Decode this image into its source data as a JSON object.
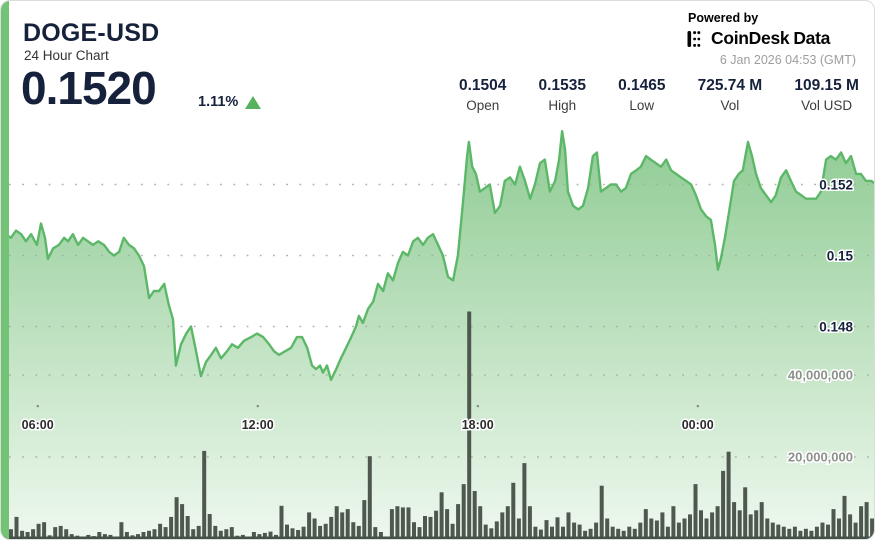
{
  "header": {
    "symbol": "DOGE-USD",
    "subtitle": "24 Hour Chart",
    "price": "0.1520",
    "change_percent": "1.11%",
    "change_direction": "up"
  },
  "branding": {
    "powered_by": "Powered by",
    "provider_name": "CoinDesk",
    "provider_suffix": "Data",
    "timestamp": "6 Jan 2026 04:53 (GMT)"
  },
  "stats": [
    {
      "value": "0.1504",
      "label": "Open"
    },
    {
      "value": "0.1535",
      "label": "High"
    },
    {
      "value": "0.1465",
      "label": "Low"
    },
    {
      "value": "725.74 M",
      "label": "Vol"
    },
    {
      "value": "109.15 M",
      "label": "Vol USD"
    }
  ],
  "colors": {
    "accent": "#72c376",
    "line": "#5cb868",
    "area_top": "#8fcb93",
    "area_bottom": "#eef8ee",
    "bar": "#4e584f",
    "baseline": "#47514a",
    "grid": "#9fab9f",
    "price_label": "#16213c",
    "volume_label": "#8d918b",
    "time_label": "#2b2b2b",
    "up": "#57b25e"
  },
  "chart_data": {
    "type": "area",
    "title": "DOGE-USD 24 Hour Chart",
    "x_axis": {
      "unit": "hour-of-day (t>24 = next day)",
      "range": [
        5.0,
        28.87
      ],
      "ticks": [
        {
          "label": "06:00",
          "t": 6
        },
        {
          "label": "12:00",
          "t": 12
        },
        {
          "label": "18:00",
          "t": 18
        },
        {
          "label": "00:00",
          "t": 24
        }
      ]
    },
    "price_axis": {
      "ticks": [
        {
          "label": "0.152",
          "value": 0.152
        },
        {
          "label": "0.15",
          "value": 0.15
        },
        {
          "label": "0.148",
          "value": 0.148
        }
      ],
      "visible_range": [
        0.1465,
        0.1535
      ]
    },
    "volume_axis": {
      "unit": "millions",
      "ticks": [
        {
          "label": "40,000,000",
          "value": 40
        },
        {
          "label": "20,000,000",
          "value": 20
        }
      ]
    },
    "price_series": [
      [
        5.0,
        0.1508
      ],
      [
        5.14,
        0.1506
      ],
      [
        5.27,
        0.1505
      ],
      [
        5.41,
        0.1507
      ],
      [
        5.55,
        0.1506
      ],
      [
        5.68,
        0.1504
      ],
      [
        5.82,
        0.1506
      ],
      [
        5.98,
        0.1503
      ],
      [
        6.09,
        0.1509
      ],
      [
        6.2,
        0.1505
      ],
      [
        6.28,
        0.1499
      ],
      [
        6.42,
        0.1502
      ],
      [
        6.58,
        0.1503
      ],
      [
        6.72,
        0.1505
      ],
      [
        6.83,
        0.1504
      ],
      [
        6.96,
        0.1506
      ],
      [
        7.1,
        0.1503
      ],
      [
        7.24,
        0.1505
      ],
      [
        7.37,
        0.1504
      ],
      [
        7.51,
        0.1503
      ],
      [
        7.65,
        0.1504
      ],
      [
        7.81,
        0.1503
      ],
      [
        7.95,
        0.1501
      ],
      [
        8.08,
        0.15
      ],
      [
        8.22,
        0.1501
      ],
      [
        8.35,
        0.1505
      ],
      [
        8.49,
        0.1503
      ],
      [
        8.63,
        0.1502
      ],
      [
        8.76,
        0.15
      ],
      [
        8.9,
        0.1497
      ],
      [
        9.04,
        0.1488
      ],
      [
        9.17,
        0.149
      ],
      [
        9.31,
        0.149
      ],
      [
        9.45,
        0.1492
      ],
      [
        9.58,
        0.1486
      ],
      [
        9.69,
        0.1482
      ],
      [
        9.77,
        0.1469
      ],
      [
        9.91,
        0.1475
      ],
      [
        10.05,
        0.1478
      ],
      [
        10.18,
        0.148
      ],
      [
        10.32,
        0.1473
      ],
      [
        10.45,
        0.1466
      ],
      [
        10.59,
        0.147
      ],
      [
        10.73,
        0.1472
      ],
      [
        10.86,
        0.1474
      ],
      [
        11.0,
        0.1471
      ],
      [
        11.16,
        0.1473
      ],
      [
        11.3,
        0.1475
      ],
      [
        11.46,
        0.1474
      ],
      [
        11.63,
        0.1476
      ],
      [
        11.82,
        0.1477
      ],
      [
        11.98,
        0.1478
      ],
      [
        12.15,
        0.1477
      ],
      [
        12.31,
        0.1475
      ],
      [
        12.45,
        0.1473
      ],
      [
        12.58,
        0.1472
      ],
      [
        12.74,
        0.1473
      ],
      [
        12.91,
        0.1474
      ],
      [
        13.07,
        0.1477
      ],
      [
        13.21,
        0.1477
      ],
      [
        13.35,
        0.1474
      ],
      [
        13.48,
        0.1469
      ],
      [
        13.59,
        0.1468
      ],
      [
        13.7,
        0.1469
      ],
      [
        13.78,
        0.1467
      ],
      [
        13.89,
        0.1469
      ],
      [
        14.0,
        0.1465
      ],
      [
        14.14,
        0.1468
      ],
      [
        14.27,
        0.1471
      ],
      [
        14.41,
        0.1474
      ],
      [
        14.55,
        0.1477
      ],
      [
        14.68,
        0.148
      ],
      [
        14.76,
        0.1483
      ],
      [
        14.87,
        0.1481
      ],
      [
        15.01,
        0.1485
      ],
      [
        15.15,
        0.1487
      ],
      [
        15.28,
        0.1492
      ],
      [
        15.42,
        0.149
      ],
      [
        15.55,
        0.1495
      ],
      [
        15.69,
        0.1493
      ],
      [
        15.83,
        0.1498
      ],
      [
        15.96,
        0.1501
      ],
      [
        16.1,
        0.15
      ],
      [
        16.24,
        0.1504
      ],
      [
        16.37,
        0.1505
      ],
      [
        16.51,
        0.1503
      ],
      [
        16.64,
        0.1505
      ],
      [
        16.78,
        0.1506
      ],
      [
        16.92,
        0.1503
      ],
      [
        17.05,
        0.15
      ],
      [
        17.19,
        0.1494
      ],
      [
        17.33,
        0.1493
      ],
      [
        17.46,
        0.15
      ],
      [
        17.6,
        0.1515
      ],
      [
        17.71,
        0.1528
      ],
      [
        17.76,
        0.1532
      ],
      [
        17.85,
        0.1525
      ],
      [
        17.95,
        0.1523
      ],
      [
        18.06,
        0.1518
      ],
      [
        18.2,
        0.1519
      ],
      [
        18.33,
        0.152
      ],
      [
        18.47,
        0.1512
      ],
      [
        18.61,
        0.1514
      ],
      [
        18.74,
        0.1521
      ],
      [
        18.88,
        0.1522
      ],
      [
        19.02,
        0.152
      ],
      [
        19.15,
        0.1525
      ],
      [
        19.29,
        0.1521
      ],
      [
        19.43,
        0.1516
      ],
      [
        19.56,
        0.152
      ],
      [
        19.7,
        0.1526
      ],
      [
        19.83,
        0.1527
      ],
      [
        19.97,
        0.1518
      ],
      [
        20.11,
        0.1521
      ],
      [
        20.22,
        0.1527
      ],
      [
        20.3,
        0.1535
      ],
      [
        20.38,
        0.153
      ],
      [
        20.46,
        0.1518
      ],
      [
        20.6,
        0.1514
      ],
      [
        20.74,
        0.1513
      ],
      [
        20.87,
        0.1514
      ],
      [
        21.01,
        0.1519
      ],
      [
        21.14,
        0.1528
      ],
      [
        21.25,
        0.1529
      ],
      [
        21.36,
        0.1518
      ],
      [
        21.5,
        0.1519
      ],
      [
        21.63,
        0.152
      ],
      [
        21.77,
        0.152
      ],
      [
        21.91,
        0.1518
      ],
      [
        22.04,
        0.1519
      ],
      [
        22.18,
        0.1523
      ],
      [
        22.32,
        0.1524
      ],
      [
        22.45,
        0.1525
      ],
      [
        22.59,
        0.1528
      ],
      [
        22.72,
        0.1527
      ],
      [
        22.86,
        0.1526
      ],
      [
        23.0,
        0.1525
      ],
      [
        23.14,
        0.1527
      ],
      [
        23.27,
        0.1524
      ],
      [
        23.41,
        0.1523
      ],
      [
        23.54,
        0.1522
      ],
      [
        23.68,
        0.1521
      ],
      [
        23.82,
        0.152
      ],
      [
        23.95,
        0.1517
      ],
      [
        24.09,
        0.1513
      ],
      [
        24.23,
        0.1511
      ],
      [
        24.36,
        0.151
      ],
      [
        24.47,
        0.1503
      ],
      [
        24.55,
        0.1496
      ],
      [
        24.63,
        0.1499
      ],
      [
        24.74,
        0.1505
      ],
      [
        24.85,
        0.1512
      ],
      [
        24.99,
        0.1521
      ],
      [
        25.12,
        0.1523
      ],
      [
        25.23,
        0.1524
      ],
      [
        25.37,
        0.1532
      ],
      [
        25.48,
        0.1528
      ],
      [
        25.59,
        0.1523
      ],
      [
        25.72,
        0.1519
      ],
      [
        25.86,
        0.1517
      ],
      [
        26.0,
        0.1515
      ],
      [
        26.13,
        0.1517
      ],
      [
        26.27,
        0.1522
      ],
      [
        26.41,
        0.1524
      ],
      [
        26.54,
        0.1521
      ],
      [
        26.68,
        0.1518
      ],
      [
        26.82,
        0.1517
      ],
      [
        26.95,
        0.1516
      ],
      [
        27.09,
        0.1516
      ],
      [
        27.23,
        0.1516
      ],
      [
        27.36,
        0.1518
      ],
      [
        27.5,
        0.1527
      ],
      [
        27.63,
        0.1528
      ],
      [
        27.77,
        0.1527
      ],
      [
        27.91,
        0.1529
      ],
      [
        28.04,
        0.1526
      ],
      [
        28.18,
        0.1528
      ],
      [
        28.32,
        0.1523
      ],
      [
        28.45,
        0.1523
      ],
      [
        28.59,
        0.1521
      ],
      [
        28.73,
        0.1521
      ],
      [
        28.87,
        0.152
      ]
    ],
    "volume_series_millions": [
      3.2,
      2.4,
      5.4,
      2.0,
      1.7,
      2.4,
      3.7,
      4.1,
      0.9,
      2.9,
      3.2,
      2.4,
      1.2,
      0.8,
      0.5,
      1.0,
      0.7,
      1.7,
      1.2,
      1.0,
      0.6,
      4.1,
      1.7,
      0.9,
      1.2,
      1.7,
      2.0,
      2.4,
      3.7,
      2.9,
      5.4,
      10.2,
      8.5,
      5.6,
      2.4,
      3.2,
      21.5,
      6.1,
      3.2,
      2.0,
      2.4,
      2.9,
      0.8,
      1.0,
      0.5,
      1.7,
      1.2,
      1.5,
      1.8,
      1.0,
      8.1,
      3.5,
      2.6,
      2.2,
      3.0,
      6.5,
      5.0,
      3.2,
      3.7,
      5.4,
      8.0,
      6.5,
      7.3,
      4.1,
      3.2,
      9.5,
      20.2,
      2.9,
      1.7,
      0.5,
      7.3,
      8.0,
      7.7,
      7.7,
      4.1,
      2.9,
      5.6,
      5.4,
      6.9,
      11.4,
      7.3,
      3.7,
      8.5,
      13.4,
      55.5,
      11.7,
      8.0,
      3.5,
      2.6,
      4.3,
      6.5,
      8.0,
      13.7,
      5.0,
      18.5,
      8.0,
      3.0,
      2.3,
      4.6,
      3.0,
      5.3,
      3.0,
      6.5,
      4.0,
      3.5,
      2.0,
      2.5,
      4.0,
      13.0,
      5.0,
      3.0,
      2.5,
      2.0,
      3.0,
      2.5,
      4.0,
      7.3,
      5.0,
      4.5,
      6.5,
      3.0,
      8.0,
      4.0,
      5.0,
      6.0,
      13.4,
      7.0,
      5.0,
      6.5,
      8.0,
      16.6,
      21.3,
      9.0,
      7.0,
      12.6,
      6.0,
      7.0,
      9.0,
      5.0,
      4.0,
      3.5,
      3.0,
      2.5,
      3.0,
      2.0,
      2.5,
      2.0,
      3.0,
      4.0,
      3.5,
      7.3,
      5.0,
      10.5,
      6.0,
      4.0,
      8.0,
      9.0,
      5.0
    ]
  }
}
